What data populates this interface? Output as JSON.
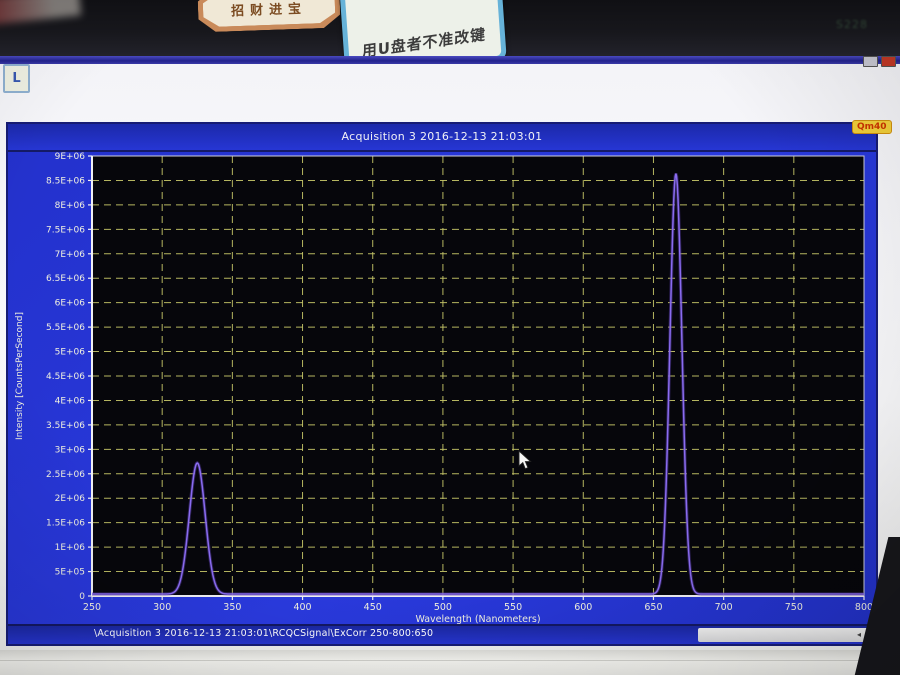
{
  "scene": {
    "sticker_octagon_text": "招财进宝",
    "sticker_note_text": "用U盘者不准改键",
    "machine_label": "S228"
  },
  "window": {
    "title": "Acquisition 3 2016-12-13 21:03:01",
    "badge": "Qm40",
    "corner_icon_label": "L",
    "statusbar_path": "\\Acquisition 3 2016-12-13 21:03:01\\RCQCSignal\\ExCorr 250-800:650",
    "scroll_left": "◂",
    "scroll_right": "▸"
  },
  "colors": {
    "window_blue": "#2636d4",
    "plot_background": "#06060b",
    "grid_yellow": "#c9c96a",
    "curve_purple": "#8a6cf0",
    "axis_text": "#f0f0e0",
    "badge_yellow": "#f2cf3a",
    "badge_text": "#cc3300"
  },
  "chart_data": {
    "type": "line",
    "title": "Acquisition 3 2016-12-13 21:03:01",
    "xlabel": "Wavelength (Nanometers)",
    "ylabel": "Intensity [CountsPerSecond]",
    "xlim": [
      250,
      800
    ],
    "ylim": [
      0,
      9000000
    ],
    "grid": {
      "style": "dashed",
      "color": "#c9c96a",
      "background": "#06060b"
    },
    "x_ticks": [
      250,
      300,
      350,
      400,
      450,
      500,
      550,
      600,
      650,
      700,
      750,
      800
    ],
    "y_ticks": [
      {
        "value": 0,
        "label": "0"
      },
      {
        "value": 500000,
        "label": "5E+05"
      },
      {
        "value": 1000000,
        "label": "1E+06"
      },
      {
        "value": 1500000,
        "label": "1.5E+06"
      },
      {
        "value": 2000000,
        "label": "2E+06"
      },
      {
        "value": 2500000,
        "label": "2.5E+06"
      },
      {
        "value": 3000000,
        "label": "3E+06"
      },
      {
        "value": 3500000,
        "label": "3.5E+06"
      },
      {
        "value": 4000000,
        "label": "4E+06"
      },
      {
        "value": 4500000,
        "label": "4.5E+06"
      },
      {
        "value": 5000000,
        "label": "5E+06"
      },
      {
        "value": 5500000,
        "label": "5.5E+06"
      },
      {
        "value": 6000000,
        "label": "6E+06"
      },
      {
        "value": 6500000,
        "label": "6.5E+06"
      },
      {
        "value": 7000000,
        "label": "7E+06"
      },
      {
        "value": 7500000,
        "label": "7.5E+06"
      },
      {
        "value": 8000000,
        "label": "8E+06"
      },
      {
        "value": 8500000,
        "label": "8.5E+06"
      },
      {
        "value": 9000000,
        "label": "9E+06"
      }
    ],
    "series": [
      {
        "name": "RCQCSignal ExCorr 250-800:650",
        "color": "#8a6cf0",
        "baseline_cps": 40000,
        "peaks": [
          {
            "center_nm": 325,
            "height_cps": 2680000,
            "width_nm": 8
          },
          {
            "center_nm": 666,
            "height_cps": 8600000,
            "width_nm": 6
          }
        ]
      }
    ]
  }
}
